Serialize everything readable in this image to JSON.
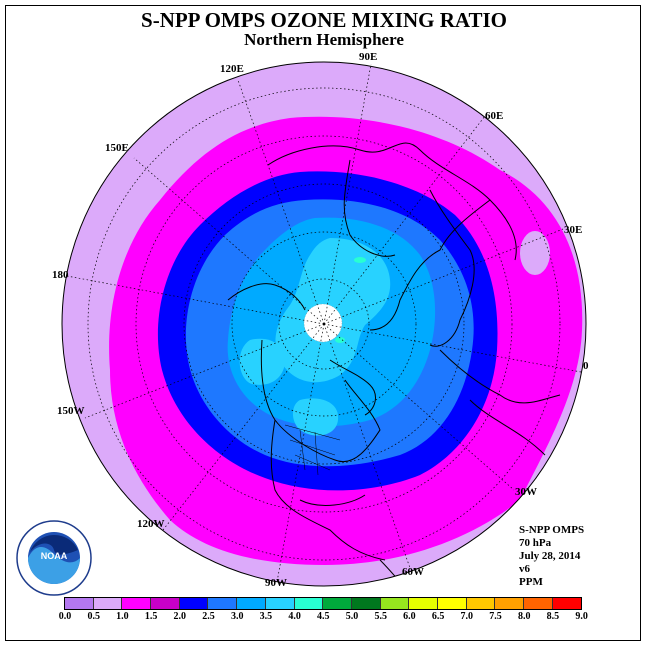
{
  "title": "S-NPP OMPS OZONE MIXING RATIO",
  "subtitle": "Northern Hemisphere",
  "longitude_labels": [
    {
      "text": "90E"
    },
    {
      "text": "60E"
    },
    {
      "text": "30E"
    },
    {
      "text": "0"
    },
    {
      "text": "30W"
    },
    {
      "text": "60W"
    },
    {
      "text": "90W"
    },
    {
      "text": "120W"
    },
    {
      "text": "150W"
    },
    {
      "text": "180"
    },
    {
      "text": "150E"
    },
    {
      "text": "120E"
    }
  ],
  "info": {
    "instrument": "S-NPP OMPS",
    "level": "70 hPa",
    "date": "July 28, 2014",
    "version": "v6",
    "units": "PPM"
  },
  "logo_text": "NOAA",
  "colorbar": {
    "ticks": [
      "0.0",
      "0.5",
      "1.0",
      "1.5",
      "2.0",
      "2.5",
      "3.0",
      "3.5",
      "4.0",
      "4.5",
      "5.0",
      "5.5",
      "6.0",
      "6.5",
      "7.0",
      "7.5",
      "8.0",
      "8.5",
      "9.0"
    ],
    "colors": [
      "#b478f0",
      "#dcaafa",
      "#ff00ff",
      "#c800c8",
      "#0000ff",
      "#1e78ff",
      "#00aaff",
      "#28d2ff",
      "#28ffd2",
      "#00aa3c",
      "#00781e",
      "#96e61e",
      "#e6ff00",
      "#ffff00",
      "#ffc800",
      "#ffa000",
      "#ff6400",
      "#ff0000",
      "#a0501e"
    ]
  },
  "contour_colors": {
    "band_0.5_1.0": "#dcaafa",
    "band_1.0_1.5": "#ff00ff",
    "band_2.0_2.5": "#0000ff",
    "band_2.5_3.0": "#1e78ff",
    "band_3.0_3.5": "#00aaff",
    "band_3.5_4.0": "#28d2ff",
    "pole_missing": "#ffffff"
  }
}
